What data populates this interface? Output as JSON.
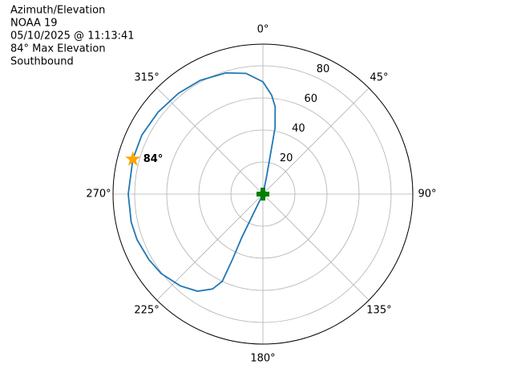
{
  "chart_data": {
    "type": "polar-line",
    "title_lines": [
      "Azimuth/Elevation",
      "NOAA 19",
      "05/10/2025 @ 11:13:41",
      "84° Max Elevation",
      "Southbound"
    ],
    "xlim": [
      0,
      360
    ],
    "xticks": [
      {
        "value": 0,
        "label": "0°"
      },
      {
        "value": 45,
        "label": "45°"
      },
      {
        "value": 90,
        "label": "90°"
      },
      {
        "value": 135,
        "label": "135°"
      },
      {
        "value": 180,
        "label": "180°"
      },
      {
        "value": 225,
        "label": "225°"
      },
      {
        "value": 270,
        "label": "270°"
      },
      {
        "value": 315,
        "label": "315°"
      }
    ],
    "ylim": [
      0,
      93.5
    ],
    "yticks": [
      20,
      40,
      60,
      80
    ],
    "grid": true,
    "series": [
      {
        "color": "#1f77b4",
        "x": [
          10,
          12,
          11,
          10.4,
          8,
          5,
          0,
          352,
          343,
          331,
          320,
          308,
          296,
          285,
          270,
          258,
          250,
          240,
          232,
          222,
          214,
          208,
          205,
          205,
          206,
          206,
          206
        ],
        "values": [
          0,
          10,
          20,
          42,
          55,
          62,
          70,
          76,
          79,
          81,
          82,
          83,
          84,
          84,
          84,
          84,
          83.5,
          82,
          80.5,
          77,
          73,
          67,
          60,
          45,
          30,
          15,
          0
        ]
      }
    ],
    "max_point": {
      "x": 285,
      "value": 84,
      "color": "#ffa500",
      "label": "84°"
    },
    "start_point": {
      "x": 0,
      "value": 0,
      "color": "#008000"
    }
  }
}
